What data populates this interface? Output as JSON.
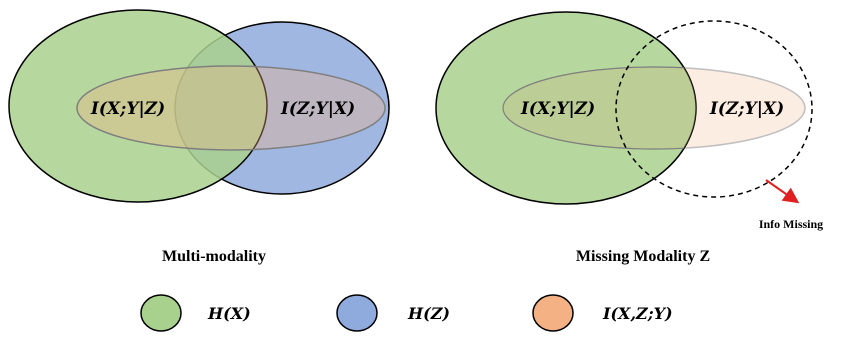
{
  "colors": {
    "h_x_fill": "#a9d18e",
    "h_z_fill": "#8faadc",
    "i_xzy_fill": "#f4b183",
    "info_missing_arrow": "#e02020"
  },
  "left_diagram": {
    "caption": "Multi-modality",
    "label_xy_given_z": "I(X;Y|Z)",
    "label_zy_given_x": "I(Z;Y|X)"
  },
  "right_diagram": {
    "caption": "Missing Modality Z",
    "label_xy_given_z": "I(X;Y|Z)",
    "label_zy_given_x": "I(Z;Y|X)",
    "annotation": "Info Missing"
  },
  "legend": [
    {
      "label": "H(X)",
      "color": "#a9d18e"
    },
    {
      "label": "H(Z)",
      "color": "#8faadc"
    },
    {
      "label": "I(X,Z;Y)",
      "color": "#f4b183"
    }
  ]
}
